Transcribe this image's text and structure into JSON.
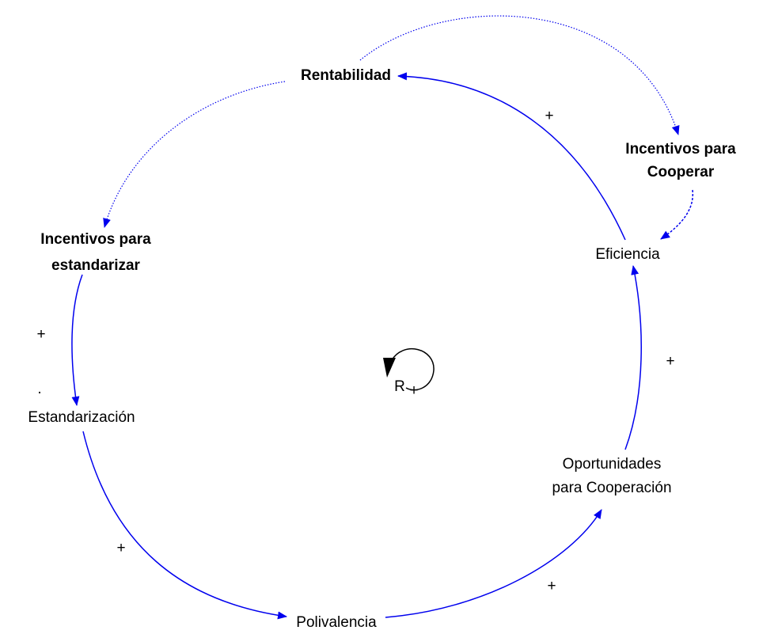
{
  "nodes": [
    {
      "lines": [
        "Rentabilidad"
      ]
    },
    {
      "lines": [
        "Incentivos para",
        "Cooperar"
      ]
    },
    {
      "lines": [
        "Eficiencia"
      ]
    },
    {
      "lines": [
        "Oportunidades",
        "para Cooperación"
      ]
    },
    {
      "lines": [
        "Polivalencia"
      ]
    },
    {
      "lines": [
        "Estandarización"
      ]
    },
    {
      "lines": [
        "Incentivos para",
        "estandarizar"
      ]
    }
  ],
  "polarities": [
    "+",
    "+",
    "+",
    "+",
    "+"
  ],
  "loop": {
    "label": "R",
    "sign": "+"
  },
  "mark": "."
}
